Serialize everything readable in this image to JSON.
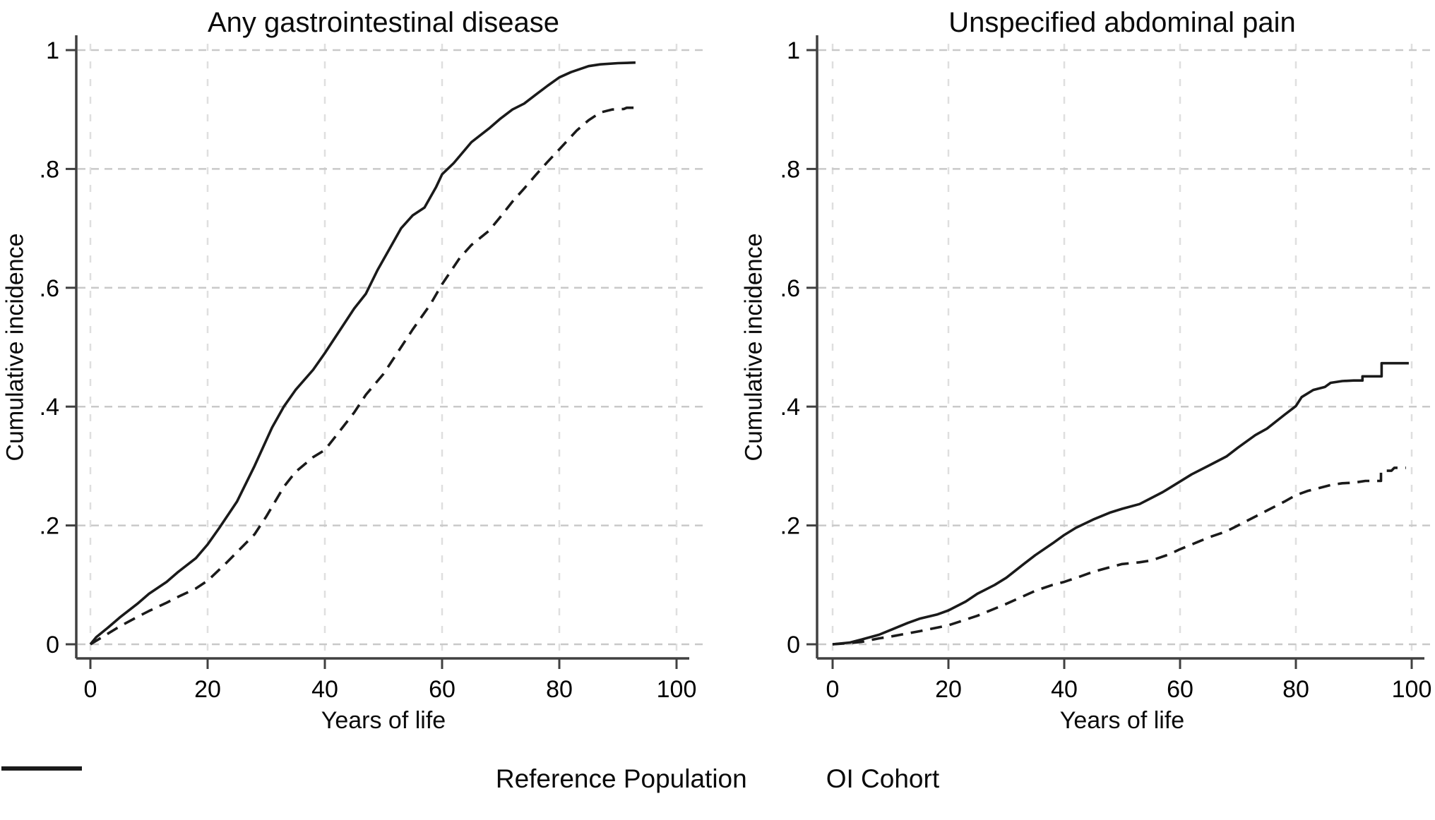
{
  "figure": {
    "legend": [
      {
        "label": "Reference Population",
        "style": "dashed"
      },
      {
        "label": "OI Cohort",
        "style": "solid"
      }
    ]
  },
  "chart_data": [
    {
      "type": "line",
      "title": "Any gastrointestinal disease",
      "xlabel": "Years of life",
      "ylabel": "Cumulative incidence",
      "xlim": [
        0,
        100
      ],
      "ylim": [
        0,
        1
      ],
      "x_ticks": [
        0,
        20,
        40,
        60,
        80,
        100
      ],
      "x_tick_labels": [
        "0",
        "20",
        "40",
        "60",
        "80",
        "100"
      ],
      "y_ticks": [
        0,
        0.2,
        0.4,
        0.6,
        0.8,
        1
      ],
      "y_tick_labels": [
        "0",
        ".2",
        ".4",
        ".6",
        ".8",
        "1"
      ],
      "grid": "dashed horizontal and vertical gridlines",
      "legend_position": "bottom",
      "series": [
        {
          "name": "Reference Population",
          "style": "dashed",
          "points": [
            [
              0,
              0
            ],
            [
              2,
              0.012
            ],
            [
              5,
              0.03
            ],
            [
              8,
              0.046
            ],
            [
              10,
              0.056
            ],
            [
              13,
              0.07
            ],
            [
              15,
              0.08
            ],
            [
              18,
              0.094
            ],
            [
              20,
              0.107
            ],
            [
              23,
              0.135
            ],
            [
              25,
              0.155
            ],
            [
              28,
              0.185
            ],
            [
              30,
              0.215
            ],
            [
              33,
              0.265
            ],
            [
              35,
              0.29
            ],
            [
              38,
              0.315
            ],
            [
              40,
              0.327
            ],
            [
              42,
              0.352
            ],
            [
              45,
              0.39
            ],
            [
              47,
              0.42
            ],
            [
              50,
              0.455
            ],
            [
              53,
              0.5
            ],
            [
              55,
              0.53
            ],
            [
              58,
              0.572
            ],
            [
              60,
              0.606
            ],
            [
              63,
              0.65
            ],
            [
              65,
              0.672
            ],
            [
              68,
              0.696
            ],
            [
              70,
              0.72
            ],
            [
              72,
              0.745
            ],
            [
              74,
              0.767
            ],
            [
              76,
              0.79
            ],
            [
              78,
              0.812
            ],
            [
              80,
              0.833
            ],
            [
              83,
              0.865
            ],
            [
              85,
              0.882
            ],
            [
              87,
              0.895
            ],
            [
              89,
              0.9
            ],
            [
              91,
              0.901
            ],
            [
              91.5,
              0.903
            ],
            [
              93,
              0.903
            ]
          ]
        },
        {
          "name": "OI Cohort",
          "style": "solid",
          "points": [
            [
              0,
              0
            ],
            [
              1,
              0.012
            ],
            [
              3,
              0.028
            ],
            [
              5,
              0.045
            ],
            [
              8,
              0.068
            ],
            [
              10,
              0.085
            ],
            [
              13,
              0.105
            ],
            [
              15,
              0.122
            ],
            [
              18,
              0.145
            ],
            [
              20,
              0.168
            ],
            [
              22,
              0.196
            ],
            [
              25,
              0.24
            ],
            [
              28,
              0.3
            ],
            [
              31,
              0.365
            ],
            [
              33,
              0.4
            ],
            [
              35,
              0.428
            ],
            [
              38,
              0.462
            ],
            [
              40,
              0.49
            ],
            [
              43,
              0.535
            ],
            [
              45,
              0.565
            ],
            [
              47,
              0.59
            ],
            [
              49,
              0.63
            ],
            [
              51,
              0.665
            ],
            [
              53,
              0.7
            ],
            [
              55,
              0.722
            ],
            [
              57,
              0.735
            ],
            [
              59,
              0.77
            ],
            [
              60,
              0.791
            ],
            [
              62,
              0.81
            ],
            [
              65,
              0.845
            ],
            [
              68,
              0.868
            ],
            [
              70,
              0.885
            ],
            [
              72,
              0.9
            ],
            [
              74,
              0.91
            ],
            [
              76,
              0.925
            ],
            [
              78,
              0.94
            ],
            [
              80,
              0.954
            ],
            [
              82,
              0.963
            ],
            [
              85,
              0.973
            ],
            [
              87,
              0.976
            ],
            [
              90,
              0.978
            ],
            [
              93,
              0.979
            ]
          ]
        }
      ]
    },
    {
      "type": "line",
      "title": "Unspecified abdominal pain",
      "xlabel": "Years of life",
      "ylabel": "Cumulative incidence",
      "xlim": [
        0,
        100
      ],
      "ylim": [
        0,
        1
      ],
      "x_ticks": [
        0,
        20,
        40,
        60,
        80,
        100
      ],
      "x_tick_labels": [
        "0",
        "20",
        "40",
        "60",
        "80",
        "100"
      ],
      "y_ticks": [
        0,
        0.2,
        0.4,
        0.6,
        0.8,
        1
      ],
      "y_tick_labels": [
        "0",
        ".2",
        ".4",
        ".6",
        ".8",
        "1"
      ],
      "grid": "dashed horizontal and vertical gridlines",
      "legend_position": "bottom",
      "series": [
        {
          "name": "Reference Population",
          "style": "dashed",
          "points": [
            [
              0,
              0
            ],
            [
              3,
              0.002
            ],
            [
              5,
              0.004
            ],
            [
              8,
              0.01
            ],
            [
              10,
              0.013
            ],
            [
              15,
              0.022
            ],
            [
              20,
              0.032
            ],
            [
              25,
              0.048
            ],
            [
              30,
              0.068
            ],
            [
              35,
              0.09
            ],
            [
              38,
              0.1
            ],
            [
              40,
              0.105
            ],
            [
              43,
              0.115
            ],
            [
              45,
              0.122
            ],
            [
              48,
              0.13
            ],
            [
              50,
              0.135
            ],
            [
              53,
              0.138
            ],
            [
              55,
              0.141
            ],
            [
              58,
              0.151
            ],
            [
              60,
              0.16
            ],
            [
              63,
              0.172
            ],
            [
              65,
              0.18
            ],
            [
              68,
              0.19
            ],
            [
              70,
              0.2
            ],
            [
              73,
              0.215
            ],
            [
              75,
              0.225
            ],
            [
              78,
              0.24
            ],
            [
              80,
              0.251
            ],
            [
              82,
              0.258
            ],
            [
              84,
              0.263
            ],
            [
              86,
              0.268
            ],
            [
              88,
              0.271
            ],
            [
              90,
              0.272
            ],
            [
              92,
              0.275
            ],
            [
              94.7,
              0.275
            ],
            [
              94.7,
              0.292
            ],
            [
              96.5,
              0.292
            ],
            [
              97,
              0.297
            ],
            [
              99,
              0.297
            ]
          ]
        },
        {
          "name": "OI Cohort",
          "style": "solid",
          "points": [
            [
              0,
              0
            ],
            [
              3,
              0.003
            ],
            [
              5,
              0.008
            ],
            [
              8,
              0.016
            ],
            [
              10,
              0.024
            ],
            [
              13,
              0.036
            ],
            [
              15,
              0.043
            ],
            [
              18,
              0.05
            ],
            [
              20,
              0.057
            ],
            [
              23,
              0.072
            ],
            [
              25,
              0.085
            ],
            [
              28,
              0.1
            ],
            [
              30,
              0.112
            ],
            [
              33,
              0.135
            ],
            [
              35,
              0.15
            ],
            [
              38,
              0.17
            ],
            [
              40,
              0.184
            ],
            [
              42,
              0.196
            ],
            [
              45,
              0.21
            ],
            [
              48,
              0.222
            ],
            [
              50,
              0.228
            ],
            [
              53,
              0.236
            ],
            [
              55,
              0.246
            ],
            [
              57,
              0.256
            ],
            [
              60,
              0.274
            ],
            [
              62,
              0.286
            ],
            [
              65,
              0.301
            ],
            [
              68,
              0.316
            ],
            [
              70,
              0.331
            ],
            [
              73,
              0.352
            ],
            [
              75,
              0.363
            ],
            [
              78,
              0.386
            ],
            [
              80,
              0.401
            ],
            [
              81,
              0.416
            ],
            [
              83,
              0.428
            ],
            [
              85,
              0.433
            ],
            [
              86,
              0.44
            ],
            [
              88,
              0.443
            ],
            [
              90,
              0.444
            ],
            [
              91.5,
              0.444
            ],
            [
              91.5,
              0.451
            ],
            [
              94.8,
              0.451
            ],
            [
              94.8,
              0.473
            ],
            [
              99.5,
              0.473
            ]
          ]
        }
      ]
    }
  ],
  "style": {
    "curve_color": "#1a1a1a",
    "axis_color": "#404040",
    "h_gridline_color": "#c9c9c9",
    "v_gridline_color": "#dfdfdf",
    "background": "#ffffff"
  }
}
